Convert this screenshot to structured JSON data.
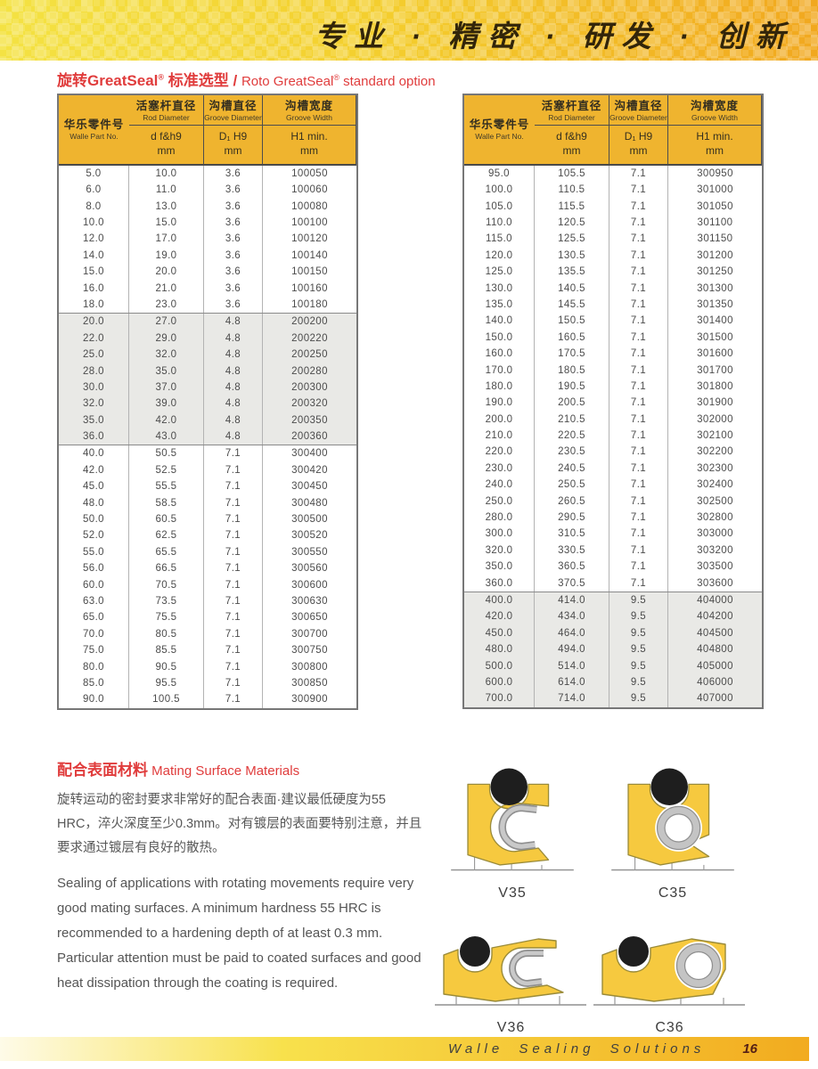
{
  "banner": {
    "slogan": "专业 · 精密 · 研发 · 创新"
  },
  "colors": {
    "banner_left": "#f4e243",
    "banner_right": "#f1a81f",
    "header_gold": "#efb42f",
    "row_shaded": "#e9e9e6",
    "title_red": "#e03c3c",
    "seal_yellow": "#f6c93f",
    "spring_gray": "#c4c4c4",
    "oring_black": "#1e1e1e"
  },
  "section1": {
    "title": {
      "zh_name": "旋转GreatSeal",
      "reg": "®",
      "zh_suffix": " 标准选型 / ",
      "en_name": "Roto GreatSeal",
      "en_suffix": " standard option"
    }
  },
  "tables": {
    "header": {
      "col1_zh": "活塞杆直径",
      "col1_en": "Rod Diameter",
      "col1_sub": "d f&h9",
      "col1_unit": "mm",
      "col2_zh": "沟槽直径",
      "col2_en": "Groove Diameter",
      "col2_sub": "D₁ H9",
      "col2_unit": "mm",
      "col3_zh": "沟槽宽度",
      "col3_en": "Groove Width",
      "col3_sub": "H1 min.",
      "col3_unit": "mm",
      "col4_zh": "华乐零件号",
      "col4_en": "Walle Part No."
    },
    "left_groups": [
      {
        "shaded": false,
        "rows": [
          [
            "5.0",
            "10.0",
            "3.6",
            "100050"
          ],
          [
            "6.0",
            "11.0",
            "3.6",
            "100060"
          ],
          [
            "8.0",
            "13.0",
            "3.6",
            "100080"
          ],
          [
            "10.0",
            "15.0",
            "3.6",
            "100100"
          ],
          [
            "12.0",
            "17.0",
            "3.6",
            "100120"
          ],
          [
            "14.0",
            "19.0",
            "3.6",
            "100140"
          ],
          [
            "15.0",
            "20.0",
            "3.6",
            "100150"
          ],
          [
            "16.0",
            "21.0",
            "3.6",
            "100160"
          ],
          [
            "18.0",
            "23.0",
            "3.6",
            "100180"
          ]
        ]
      },
      {
        "shaded": true,
        "rows": [
          [
            "20.0",
            "27.0",
            "4.8",
            "200200"
          ],
          [
            "22.0",
            "29.0",
            "4.8",
            "200220"
          ],
          [
            "25.0",
            "32.0",
            "4.8",
            "200250"
          ],
          [
            "28.0",
            "35.0",
            "4.8",
            "200280"
          ],
          [
            "30.0",
            "37.0",
            "4.8",
            "200300"
          ],
          [
            "32.0",
            "39.0",
            "4.8",
            "200320"
          ],
          [
            "35.0",
            "42.0",
            "4.8",
            "200350"
          ],
          [
            "36.0",
            "43.0",
            "4.8",
            "200360"
          ]
        ]
      },
      {
        "shaded": false,
        "rows": [
          [
            "40.0",
            "50.5",
            "7.1",
            "300400"
          ],
          [
            "42.0",
            "52.5",
            "7.1",
            "300420"
          ],
          [
            "45.0",
            "55.5",
            "7.1",
            "300450"
          ],
          [
            "48.0",
            "58.5",
            "7.1",
            "300480"
          ],
          [
            "50.0",
            "60.5",
            "7.1",
            "300500"
          ],
          [
            "52.0",
            "62.5",
            "7.1",
            "300520"
          ],
          [
            "55.0",
            "65.5",
            "7.1",
            "300550"
          ],
          [
            "56.0",
            "66.5",
            "7.1",
            "300560"
          ],
          [
            "60.0",
            "70.5",
            "7.1",
            "300600"
          ],
          [
            "63.0",
            "73.5",
            "7.1",
            "300630"
          ],
          [
            "65.0",
            "75.5",
            "7.1",
            "300650"
          ],
          [
            "70.0",
            "80.5",
            "7.1",
            "300700"
          ],
          [
            "75.0",
            "85.5",
            "7.1",
            "300750"
          ],
          [
            "80.0",
            "90.5",
            "7.1",
            "300800"
          ],
          [
            "85.0",
            "95.5",
            "7.1",
            "300850"
          ],
          [
            "90.0",
            "100.5",
            "7.1",
            "300900"
          ]
        ]
      }
    ],
    "right_groups": [
      {
        "shaded": false,
        "rows": [
          [
            "95.0",
            "105.5",
            "7.1",
            "300950"
          ],
          [
            "100.0",
            "110.5",
            "7.1",
            "301000"
          ],
          [
            "105.0",
            "115.5",
            "7.1",
            "301050"
          ],
          [
            "110.0",
            "120.5",
            "7.1",
            "301100"
          ],
          [
            "115.0",
            "125.5",
            "7.1",
            "301150"
          ],
          [
            "120.0",
            "130.5",
            "7.1",
            "301200"
          ],
          [
            "125.0",
            "135.5",
            "7.1",
            "301250"
          ],
          [
            "130.0",
            "140.5",
            "7.1",
            "301300"
          ],
          [
            "135.0",
            "145.5",
            "7.1",
            "301350"
          ],
          [
            "140.0",
            "150.5",
            "7.1",
            "301400"
          ],
          [
            "150.0",
            "160.5",
            "7.1",
            "301500"
          ],
          [
            "160.0",
            "170.5",
            "7.1",
            "301600"
          ],
          [
            "170.0",
            "180.5",
            "7.1",
            "301700"
          ],
          [
            "180.0",
            "190.5",
            "7.1",
            "301800"
          ],
          [
            "190.0",
            "200.5",
            "7.1",
            "301900"
          ],
          [
            "200.0",
            "210.5",
            "7.1",
            "302000"
          ],
          [
            "210.0",
            "220.5",
            "7.1",
            "302100"
          ],
          [
            "220.0",
            "230.5",
            "7.1",
            "302200"
          ],
          [
            "230.0",
            "240.5",
            "7.1",
            "302300"
          ],
          [
            "240.0",
            "250.5",
            "7.1",
            "302400"
          ],
          [
            "250.0",
            "260.5",
            "7.1",
            "302500"
          ],
          [
            "280.0",
            "290.5",
            "7.1",
            "302800"
          ],
          [
            "300.0",
            "310.5",
            "7.1",
            "303000"
          ],
          [
            "320.0",
            "330.5",
            "7.1",
            "303200"
          ],
          [
            "350.0",
            "360.5",
            "7.1",
            "303500"
          ],
          [
            "360.0",
            "370.5",
            "7.1",
            "303600"
          ]
        ]
      },
      {
        "shaded": true,
        "rows": [
          [
            "400.0",
            "414.0",
            "9.5",
            "404000"
          ],
          [
            "420.0",
            "434.0",
            "9.5",
            "404200"
          ],
          [
            "450.0",
            "464.0",
            "9.5",
            "404500"
          ],
          [
            "480.0",
            "494.0",
            "9.5",
            "404800"
          ],
          [
            "500.0",
            "514.0",
            "9.5",
            "405000"
          ],
          [
            "600.0",
            "614.0",
            "9.5",
            "406000"
          ],
          [
            "700.0",
            "714.0",
            "9.5",
            "407000"
          ]
        ]
      }
    ]
  },
  "materials": {
    "title_zh": "配合表面材料",
    "title_en": " Mating Surface Materials",
    "para_zh": "旋转运动的密封要求非常好的配合表面·建议最低硬度为55 HRC，淬火深度至少0.3mm。对有镀层的表面要特别注意，并且要求通过镀层有良好的散热。",
    "para_en": "Sealing of applications with rotating movements require very good mating surfaces. A minimum hardness 55 HRC is recommended to a hardening depth of at least 0.3 mm. Particular attention must be paid to coated surfaces and good heat dissipation through the coating is required."
  },
  "diagrams": {
    "labels": [
      "V35",
      "C35",
      "V36",
      "C36"
    ]
  },
  "footer": {
    "brand": "Walle Sealing Solutions",
    "page": "16"
  }
}
